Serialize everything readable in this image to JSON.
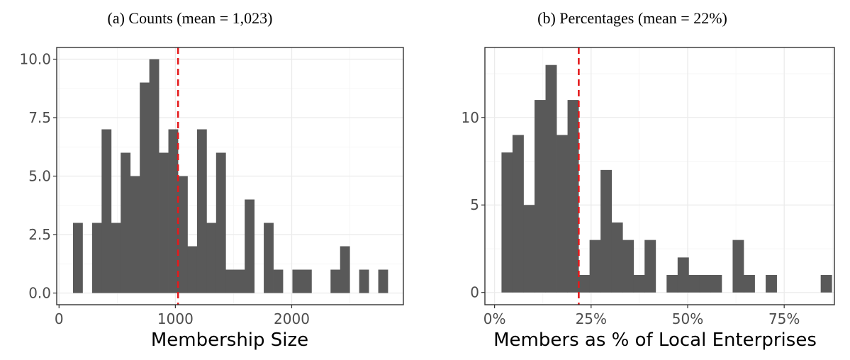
{
  "chart_data": [
    {
      "type": "bar",
      "subtype": "histogram",
      "title": "(a) Counts (mean = 1,023)",
      "xlabel": "Membership Size",
      "ylabel": "",
      "xlim": [
        -20,
        2960
      ],
      "ylim": [
        -0.5,
        10.5
      ],
      "xticks": [
        0,
        1000,
        2000
      ],
      "xtick_labels": [
        "0",
        "1000",
        "2000"
      ],
      "yticks": [
        0,
        2.5,
        5,
        7.5,
        10
      ],
      "ytick_labels": [
        "0.0",
        "2.5",
        "5.0",
        "7.5",
        "10.0"
      ],
      "mean_line": 1023,
      "grid": true,
      "bin_start": 120,
      "bin_width": 82,
      "values": [
        3,
        0,
        3,
        7,
        3,
        6,
        5,
        9,
        10,
        6,
        7,
        5,
        2,
        7,
        3,
        6,
        1,
        1,
        4,
        0,
        3,
        1,
        0,
        1,
        1,
        0,
        0,
        1,
        2,
        0,
        1,
        0,
        1
      ]
    },
    {
      "type": "bar",
      "subtype": "histogram",
      "title": "(b) Percentages (mean = 22%)",
      "xlabel": "Members as % of Local Enterprises",
      "ylabel": "",
      "xlim": [
        -0.025,
        0.88
      ],
      "ylim": [
        -0.7,
        14.0
      ],
      "xticks": [
        0,
        0.25,
        0.5,
        0.75
      ],
      "xtick_labels": [
        "0%",
        "25%",
        "50%",
        "75%"
      ],
      "yticks": [
        0,
        5,
        10
      ],
      "ytick_labels": [
        "0",
        "5",
        "10"
      ],
      "mean_line": 0.218,
      "grid": true,
      "bin_start": 0.018,
      "bin_width": 0.0285,
      "values": [
        8,
        9,
        5,
        11,
        13,
        9,
        11,
        1,
        3,
        7,
        4,
        3,
        1,
        3,
        0,
        1,
        2,
        1,
        1,
        1,
        0,
        3,
        1,
        0,
        1,
        0,
        0,
        0,
        0,
        1
      ]
    }
  ]
}
